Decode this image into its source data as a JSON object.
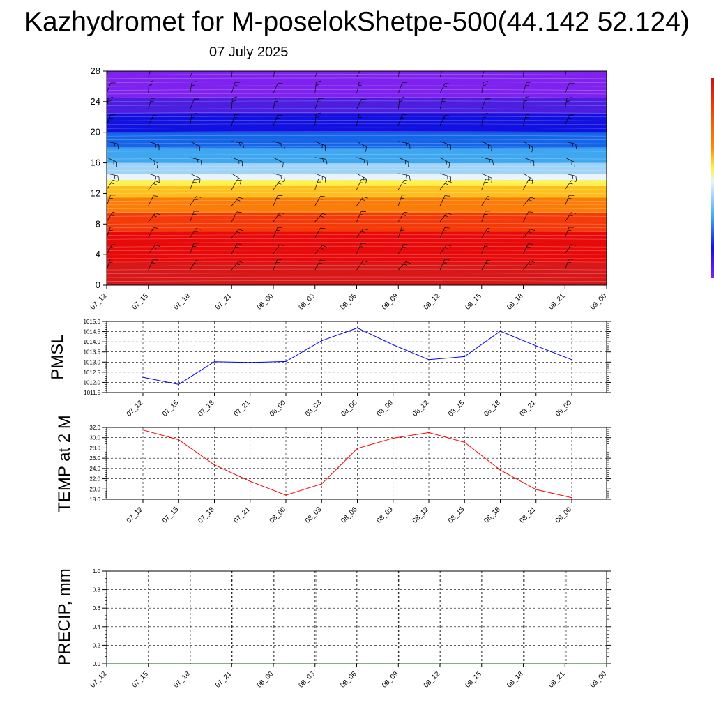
{
  "header": {
    "title": "Kazhydromet for M-poselokShetpe-500(44.142 52.124)",
    "date": "07 July 2025"
  },
  "colors": {
    "pmsl_line": "#0000ff",
    "temp_line": "#ff0000",
    "precip_line": "#006400"
  },
  "chart_data": [
    {
      "type": "heatmap",
      "name": "cross-section",
      "x_labels": [
        "07_12",
        "07_15",
        "07_18",
        "07_21",
        "08_00",
        "08_03",
        "08_06",
        "08_09",
        "08_12",
        "08_15",
        "08_18",
        "08_21",
        "09_00"
      ],
      "yticks": [
        0,
        4,
        8,
        12,
        16,
        20,
        24,
        28
      ],
      "ylim": [
        0,
        28
      ],
      "color_bands": [
        {
          "y0": 0,
          "y1": 3,
          "color": "#d81818"
        },
        {
          "y0": 3,
          "y1": 7,
          "color": "#e80a0a"
        },
        {
          "y0": 7,
          "y1": 9.5,
          "color": "#f53a0a"
        },
        {
          "y0": 9.5,
          "y1": 11.5,
          "color": "#fa7d0a"
        },
        {
          "y0": 11.5,
          "y1": 13,
          "color": "#fdbf1c"
        },
        {
          "y0": 13,
          "y1": 13.8,
          "color": "#fff04a"
        },
        {
          "y0": 13.8,
          "y1": 14.6,
          "color": "#e8f4ff"
        },
        {
          "y0": 14.6,
          "y1": 16,
          "color": "#9fd3f7"
        },
        {
          "y0": 16,
          "y1": 18,
          "color": "#3fa6f0"
        },
        {
          "y0": 18,
          "y1": 20,
          "color": "#1565e8"
        },
        {
          "y0": 20,
          "y1": 22.5,
          "color": "#1212e0"
        },
        {
          "y0": 22.5,
          "y1": 24.5,
          "color": "#4b1ee0"
        },
        {
          "y0": 24.5,
          "y1": 28,
          "color": "#7f22f0"
        }
      ],
      "wind_barbs": true
    },
    {
      "type": "line",
      "name": "pmsl",
      "ylabel": "PMSL",
      "x_labels": [
        "07_12",
        "07_15",
        "07_18",
        "07_21",
        "08_00",
        "08_03",
        "08_06",
        "08_09",
        "08_12",
        "08_15",
        "08_18",
        "08_21",
        "09_00"
      ],
      "yticks": [
        "1011.5",
        "1012.0",
        "1012.5",
        "1013.0",
        "1013.5",
        "1014.0",
        "1014.5",
        "1015.0"
      ],
      "ylim": [
        1011.5,
        1015.0
      ],
      "values": [
        1012.25,
        1011.9,
        1013.02,
        1012.98,
        1013.03,
        1014.05,
        1014.68,
        1013.85,
        1013.12,
        1013.27,
        1014.52,
        1013.8,
        1013.12
      ],
      "grid": true
    },
    {
      "type": "line",
      "name": "temp",
      "ylabel": "TEMP at 2 M",
      "x_labels": [
        "07_12",
        "07_15",
        "07_18",
        "07_21",
        "08_00",
        "08_03",
        "08_06",
        "08_09",
        "08_12",
        "08_15",
        "08_18",
        "08_21",
        "09_00"
      ],
      "yticks": [
        "18.0",
        "20.0",
        "22.0",
        "24.0",
        "26.0",
        "28.0",
        "30.0",
        "32.0"
      ],
      "ylim": [
        18.0,
        32.0
      ],
      "values": [
        31.5,
        29.6,
        24.7,
        21.5,
        18.8,
        21.0,
        27.9,
        29.9,
        31.0,
        29.1,
        23.7,
        19.9,
        18.3
      ],
      "grid": true
    },
    {
      "type": "line",
      "name": "precip",
      "ylabel": "PRECIP, mm",
      "x_labels": [
        "07_12",
        "07_15",
        "07_18",
        "07_21",
        "08_00",
        "08_03",
        "08_06",
        "08_09",
        "08_12",
        "08_15",
        "08_18",
        "08_21",
        "09_00"
      ],
      "yticks": [
        "0.0",
        "0.2",
        "0.4",
        "0.6",
        "0.8",
        "1.0"
      ],
      "ylim": [
        0.0,
        1.0
      ],
      "values": [
        0,
        0,
        0,
        0,
        0,
        0,
        0,
        0,
        0,
        0,
        0,
        0,
        0
      ],
      "grid": true
    }
  ]
}
